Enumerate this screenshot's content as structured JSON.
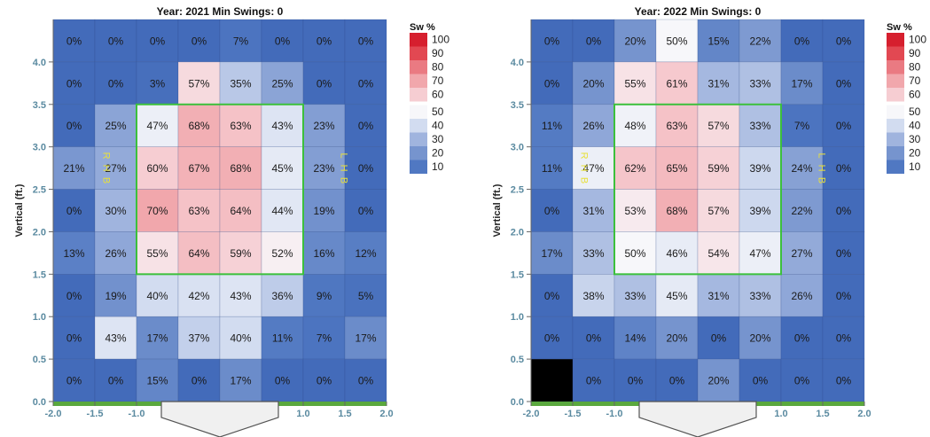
{
  "chart_data": [
    {
      "type": "heatmap",
      "title": "Year: 2021 Min Swings: 0",
      "ylabel": "Vertical (ft.)",
      "legend_title": "Sw %",
      "x_ticks": [
        "-2.0",
        "-1.5",
        "-1.0",
        "1.0",
        "1.5",
        "2.0"
      ],
      "y_ticks": [
        "0.0",
        "0.5",
        "1.0",
        "1.5",
        "2.0",
        "2.5",
        "3.0",
        "3.5",
        "4.0"
      ],
      "xlim": [
        -2.0,
        2.0
      ],
      "ylim": [
        0.0,
        4.5
      ],
      "strike_zone": {
        "x": [
          -1.0,
          1.0
        ],
        "y": [
          1.5,
          3.5
        ]
      },
      "rhb_label": "R H B",
      "lhb_label": "L H B",
      "grid": {
        "rows": 9,
        "cols": 8,
        "values": [
          [
            0,
            0,
            0,
            0,
            7,
            0,
            0,
            0
          ],
          [
            0,
            0,
            3,
            57,
            35,
            25,
            0,
            0
          ],
          [
            0,
            25,
            47,
            68,
            63,
            43,
            23,
            0
          ],
          [
            21,
            27,
            60,
            67,
            68,
            45,
            23,
            0
          ],
          [
            0,
            30,
            70,
            63,
            64,
            44,
            19,
            0
          ],
          [
            13,
            26,
            55,
            64,
            59,
            52,
            16,
            12
          ],
          [
            0,
            19,
            40,
            42,
            43,
            36,
            9,
            5
          ],
          [
            0,
            43,
            17,
            37,
            40,
            11,
            7,
            17
          ],
          [
            0,
            0,
            15,
            0,
            17,
            0,
            0,
            0
          ]
        ],
        "labels": [
          [
            "0%",
            "0%",
            "0%",
            "0%",
            "7%",
            "0%",
            "0%",
            "0%"
          ],
          [
            "0%",
            "0%",
            "3%",
            "57%",
            "35%",
            "25%",
            "0%",
            "0%"
          ],
          [
            "0%",
            "25%",
            "47%",
            "68%",
            "63%",
            "43%",
            "23%",
            "0%"
          ],
          [
            "21%",
            "27%",
            "60%",
            "67%",
            "68%",
            "45%",
            "23%",
            "0%"
          ],
          [
            "0%",
            "30%",
            "70%",
            "63%",
            "64%",
            "44%",
            "19%",
            "0%"
          ],
          [
            "13%",
            "26%",
            "55%",
            "64%",
            "59%",
            "52%",
            "16%",
            "12%"
          ],
          [
            "0%",
            "19%",
            "40%",
            "42%",
            "43%",
            "36%",
            "9%",
            "5%"
          ],
          [
            "0%",
            "43%",
            "17%",
            "37%",
            "40%",
            "11%",
            "7%",
            "17%"
          ],
          [
            "0%",
            "0%",
            "15%",
            "0%",
            "17%",
            "0%",
            "0%",
            "0%"
          ]
        ]
      },
      "legend_ticks": [
        "100",
        "90",
        "80",
        "70",
        "60",
        "50",
        "40",
        "30",
        "20",
        "10"
      ]
    },
    {
      "type": "heatmap",
      "title": "Year: 2022 Min Swings: 0",
      "ylabel": "Vertical (ft.)",
      "legend_title": "Sw %",
      "x_ticks": [
        "-2.0",
        "-1.5",
        "-1.0",
        "1.0",
        "1.5",
        "2.0"
      ],
      "y_ticks": [
        "0.0",
        "0.5",
        "1.0",
        "1.5",
        "2.0",
        "2.5",
        "3.0",
        "3.5",
        "4.0"
      ],
      "xlim": [
        -2.0,
        2.0
      ],
      "ylim": [
        0.0,
        4.5
      ],
      "strike_zone": {
        "x": [
          -1.0,
          1.0
        ],
        "y": [
          1.5,
          3.5
        ]
      },
      "rhb_label": "R H B",
      "lhb_label": "L H B",
      "grid": {
        "rows": 9,
        "cols": 8,
        "values": [
          [
            0,
            0,
            20,
            50,
            15,
            22,
            0,
            0
          ],
          [
            0,
            20,
            55,
            61,
            31,
            33,
            17,
            0
          ],
          [
            11,
            26,
            48,
            63,
            57,
            33,
            7,
            0
          ],
          [
            11,
            47,
            62,
            65,
            59,
            39,
            24,
            0
          ],
          [
            0,
            31,
            53,
            68,
            57,
            39,
            22,
            0
          ],
          [
            17,
            33,
            50,
            46,
            54,
            47,
            27,
            0
          ],
          [
            0,
            38,
            33,
            45,
            31,
            33,
            26,
            0
          ],
          [
            0,
            0,
            14,
            20,
            0,
            20,
            0,
            0
          ],
          [
            null,
            0,
            0,
            0,
            20,
            0,
            0,
            0
          ]
        ],
        "labels": [
          [
            "0%",
            "0%",
            "20%",
            "50%",
            "15%",
            "22%",
            "0%",
            "0%"
          ],
          [
            "0%",
            "20%",
            "55%",
            "61%",
            "31%",
            "33%",
            "17%",
            "0%"
          ],
          [
            "11%",
            "26%",
            "48%",
            "63%",
            "57%",
            "33%",
            "7%",
            "0%"
          ],
          [
            "11%",
            "47%",
            "62%",
            "65%",
            "59%",
            "39%",
            "24%",
            "0%"
          ],
          [
            "0%",
            "31%",
            "53%",
            "68%",
            "57%",
            "39%",
            "22%",
            "0%"
          ],
          [
            "17%",
            "33%",
            "50%",
            "46%",
            "54%",
            "47%",
            "27%",
            "0%"
          ],
          [
            "0%",
            "38%",
            "33%",
            "45%",
            "31%",
            "33%",
            "26%",
            "0%"
          ],
          [
            "0%",
            "0%",
            "14%",
            "20%",
            "0%",
            "20%",
            "0%",
            "0%"
          ],
          [
            "",
            "0%",
            "0%",
            "0%",
            "20%",
            "0%",
            "0%",
            "0%"
          ]
        ]
      },
      "legend_ticks": [
        "100",
        "90",
        "80",
        "70",
        "60",
        "50",
        "40",
        "30",
        "20",
        "10"
      ]
    }
  ]
}
